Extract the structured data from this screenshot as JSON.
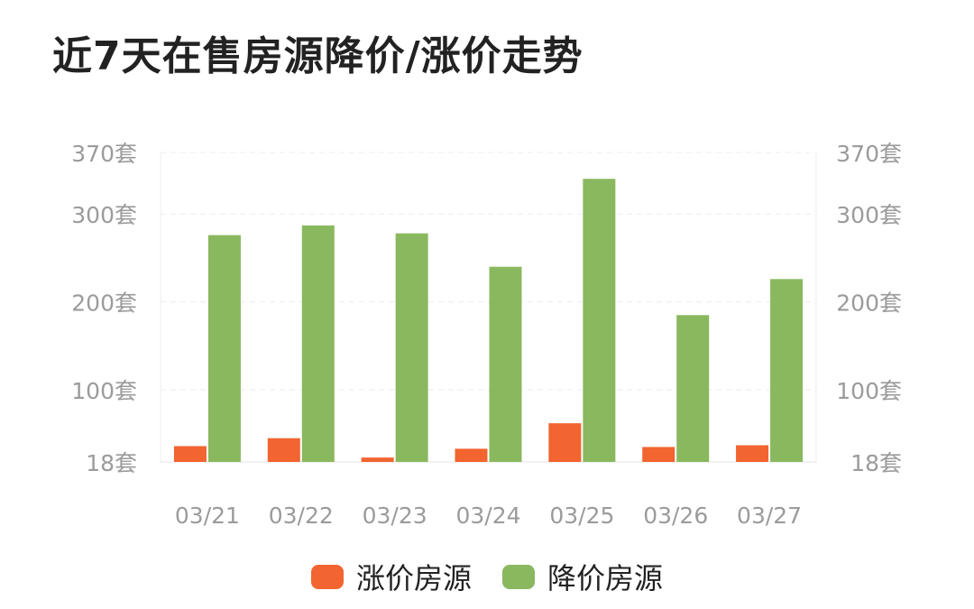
{
  "title": "近7天在售房源降价/涨价走势",
  "chart_data": {
    "type": "bar",
    "categories": [
      "03/21",
      "03/22",
      "03/23",
      "03/24",
      "03/25",
      "03/26",
      "03/27"
    ],
    "series": [
      {
        "name": "涨价房源",
        "color": "#f26430",
        "values": [
          36,
          45,
          23,
          33,
          62,
          35,
          37
        ]
      },
      {
        "name": "降价房源",
        "color": "#8ab85e",
        "values": [
          276,
          287,
          278,
          240,
          340,
          185,
          226
        ]
      }
    ],
    "ylim": [
      18,
      370
    ],
    "yticks": [
      18,
      100,
      200,
      300,
      370
    ],
    "ytick_labels": [
      "18套",
      "100套",
      "200套",
      "300套",
      "370套"
    ],
    "grid": true,
    "legend": "bottom"
  }
}
